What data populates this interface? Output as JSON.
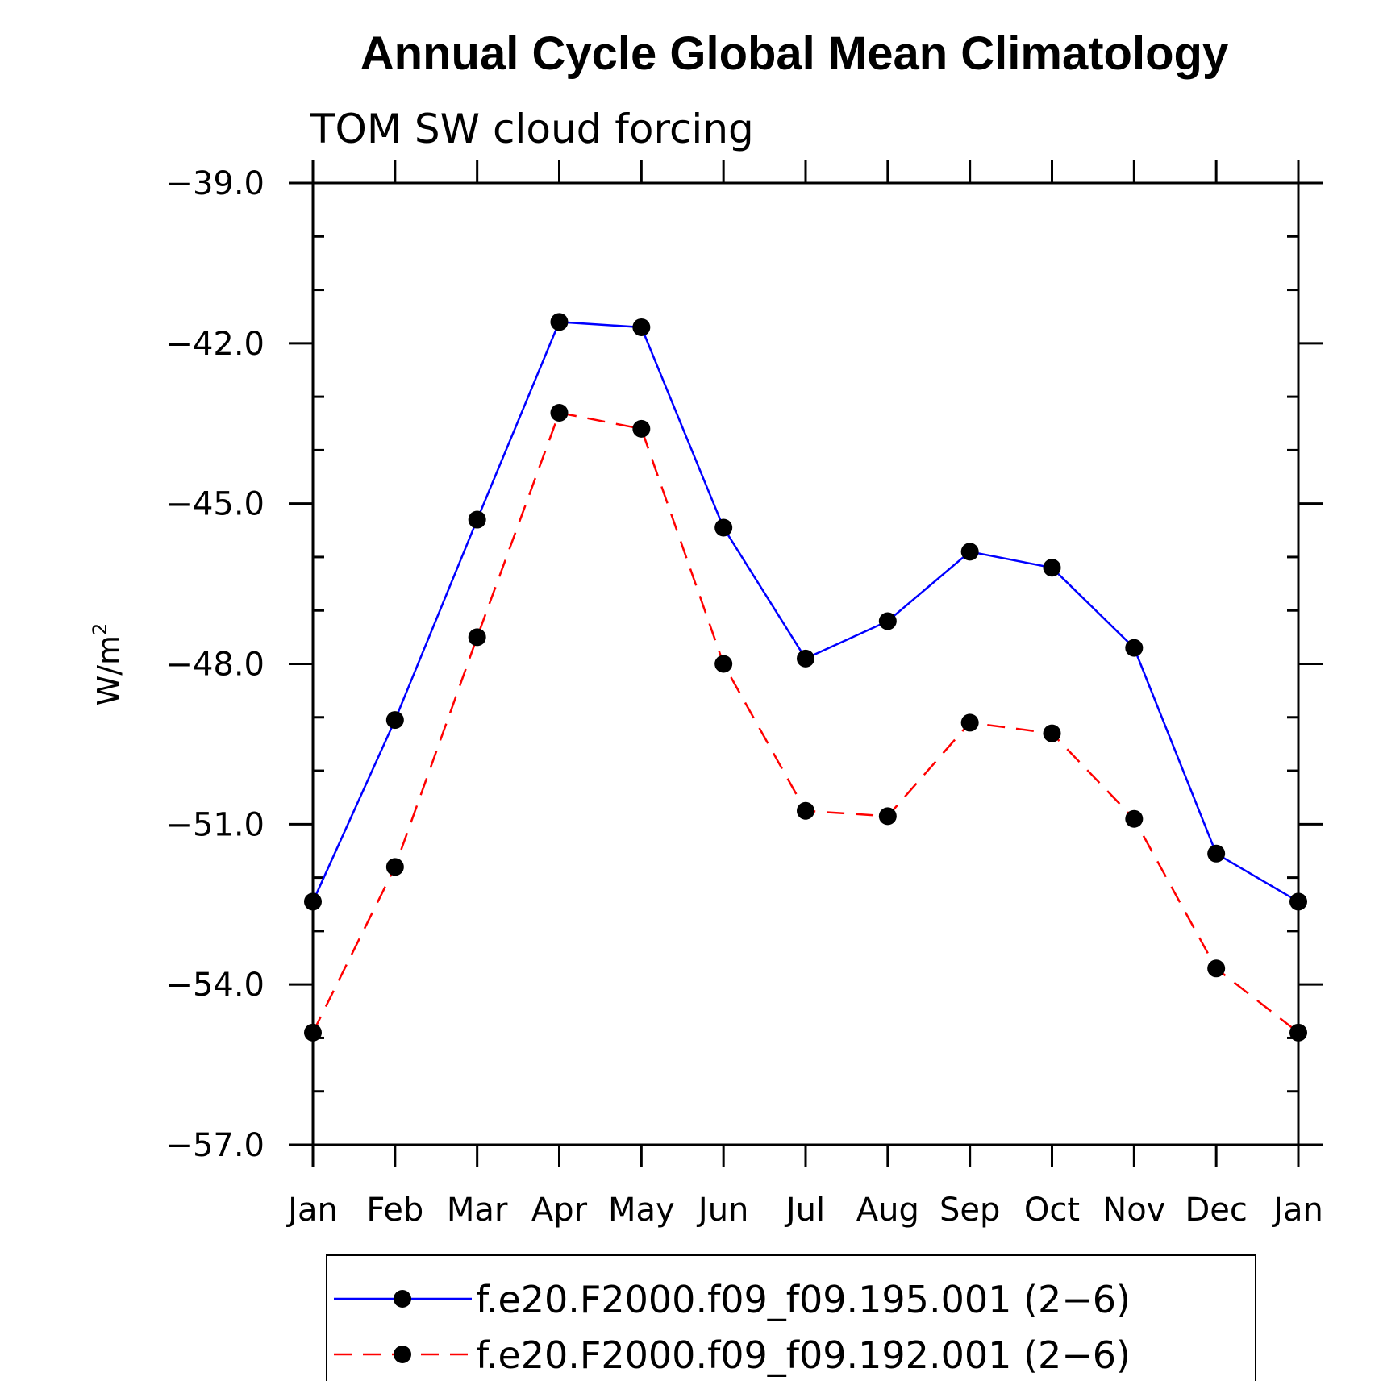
{
  "chart_data": {
    "type": "line",
    "title": "Annual Cycle Global Mean Climatology",
    "subtitle": "TOM SW cloud forcing",
    "ylabel": "W/m",
    "ylabel_sup": "2",
    "xlabel": "",
    "categories": [
      "Jan",
      "Feb",
      "Mar",
      "Apr",
      "May",
      "Jun",
      "Jul",
      "Aug",
      "Sep",
      "Oct",
      "Nov",
      "Dec",
      "Jan"
    ],
    "ylim": [
      -57.0,
      -39.0
    ],
    "yticks": [
      "-39.0",
      "-42.0",
      "-45.0",
      "-48.0",
      "-51.0",
      "-54.0",
      "-57.0"
    ],
    "ytick_values": [
      -39,
      -42,
      -45,
      -48,
      -51,
      -54,
      -57
    ],
    "grid": false,
    "legend_position": "bottom",
    "series": [
      {
        "name": "f.e20.F2000.f09_f09.195.001 (2-6)",
        "color": "#0000ff",
        "dash": "solid",
        "values": [
          -52.45,
          -49.05,
          -45.3,
          -41.6,
          -41.7,
          -45.45,
          -47.9,
          -47.2,
          -45.9,
          -46.2,
          -47.7,
          -51.55,
          -52.45
        ]
      },
      {
        "name": "f.e20.F2000.f09_f09.192.001 (2-6)",
        "color": "#ff0000",
        "dash": "dashed",
        "values": [
          -54.9,
          -51.8,
          -47.5,
          -43.3,
          -43.6,
          -48.0,
          -50.75,
          -50.85,
          -49.1,
          -49.3,
          -50.9,
          -53.7,
          -54.9
        ]
      }
    ]
  }
}
